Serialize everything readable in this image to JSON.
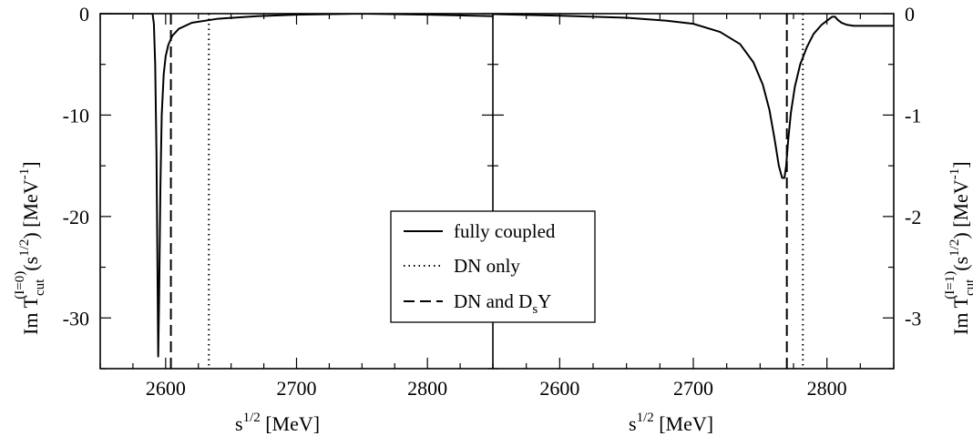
{
  "chart_data": [
    {
      "type": "line",
      "panel": "left",
      "xlabel": "s^{1/2} [MeV]",
      "ylabel": "Im T_cut^{(I=0)}(s^{1/2}) [MeV^-1]",
      "xlim": [
        2550,
        2850
      ],
      "ylim": [
        -35,
        0
      ],
      "xticks": [
        2600,
        2700,
        2800
      ],
      "yticks": [
        0,
        -10,
        -20,
        -30
      ],
      "ytick_axis": "left",
      "series": [
        {
          "name": "fully coupled",
          "style": "solid",
          "points": [
            [
              2550,
              0
            ],
            [
              2590,
              0
            ],
            [
              2591,
              -1
            ],
            [
              2592,
              -5
            ],
            [
              2593,
              -14
            ],
            [
              2593.8,
              -26
            ],
            [
              2594.3,
              -33.8
            ],
            [
              2595,
              -28
            ],
            [
              2596,
              -17
            ],
            [
              2597,
              -10
            ],
            [
              2598.5,
              -6
            ],
            [
              2600,
              -4.2
            ],
            [
              2602,
              -3.1
            ],
            [
              2605,
              -2.2
            ],
            [
              2610,
              -1.5
            ],
            [
              2620,
              -0.9
            ],
            [
              2640,
              -0.5
            ],
            [
              2670,
              -0.25
            ],
            [
              2700,
              -0.1
            ],
            [
              2750,
              0
            ],
            [
              2800,
              -0.1
            ],
            [
              2850,
              -0.25
            ]
          ]
        },
        {
          "name": "DN only",
          "style": "dotted",
          "vline": 2633
        },
        {
          "name": "DN and D_s Y",
          "style": "dashed",
          "vline": 2604
        }
      ]
    },
    {
      "type": "line",
      "panel": "right",
      "xlabel": "s^{1/2} [MeV]",
      "ylabel": "Im T_cut^{(I=1)}(s^{1/2}) [MeV^-1]",
      "xlim": [
        2550,
        2850
      ],
      "ylim": [
        -3.5,
        0
      ],
      "xticks": [
        2600,
        2700,
        2800
      ],
      "yticks": [
        0,
        -1,
        -2,
        -3
      ],
      "ytick_axis": "right",
      "series": [
        {
          "name": "fully coupled",
          "style": "solid",
          "points": [
            [
              2550,
              -0.005
            ],
            [
              2600,
              -0.02
            ],
            [
              2650,
              -0.04
            ],
            [
              2680,
              -0.07
            ],
            [
              2700,
              -0.1
            ],
            [
              2720,
              -0.18
            ],
            [
              2735,
              -0.3
            ],
            [
              2745,
              -0.48
            ],
            [
              2752,
              -0.7
            ],
            [
              2757,
              -0.95
            ],
            [
              2761,
              -1.25
            ],
            [
              2764,
              -1.5
            ],
            [
              2766.5,
              -1.62
            ],
            [
              2768.2,
              -1.62
            ],
            [
              2769.5,
              -1.5
            ],
            [
              2771,
              -1.25
            ],
            [
              2773,
              -0.98
            ],
            [
              2776,
              -0.72
            ],
            [
              2780,
              -0.5
            ],
            [
              2785,
              -0.33
            ],
            [
              2790,
              -0.2
            ],
            [
              2796,
              -0.11
            ],
            [
              2801,
              -0.06
            ],
            [
              2804,
              -0.03
            ],
            [
              2806,
              -0.03
            ],
            [
              2808,
              -0.06
            ],
            [
              2811,
              -0.09
            ],
            [
              2815,
              -0.11
            ],
            [
              2820,
              -0.12
            ],
            [
              2850,
              -0.12
            ]
          ]
        },
        {
          "name": "DN only",
          "style": "dotted",
          "vline": 2782
        },
        {
          "name": "DN and D_s Y",
          "style": "dashed",
          "vline": 2770
        }
      ]
    }
  ],
  "legend": {
    "items": [
      {
        "style": "solid",
        "label": "fully coupled"
      },
      {
        "style": "dotted",
        "label": "DN only"
      },
      {
        "style": "dashed",
        "label_main": "DN and D",
        "label_sub": "s",
        "label_tail": "Y"
      }
    ]
  },
  "labels": {
    "xlabel_base": "s",
    "xlabel_sup": "1/2",
    "xlabel_unit": " [MeV]",
    "ylabel_left_main": "Im T",
    "ylabel_left_sub": "cut",
    "ylabel_left_sup": "(I=0)",
    "ylabel_left_mid": "(s",
    "ylabel_left_sup2": "1/2",
    "ylabel_left_tail": ") [MeV",
    "ylabel_left_sup3": "-1",
    "ylabel_left_end": "]",
    "ylabel_right_main": "Im T",
    "ylabel_right_sub": "cut",
    "ylabel_right_sup": "(I=1)",
    "ylabel_right_mid": "(s",
    "ylabel_right_sup2": "1/2",
    "ylabel_right_tail": ") [MeV",
    "ylabel_right_sup3": "-1",
    "ylabel_right_end": "]"
  }
}
